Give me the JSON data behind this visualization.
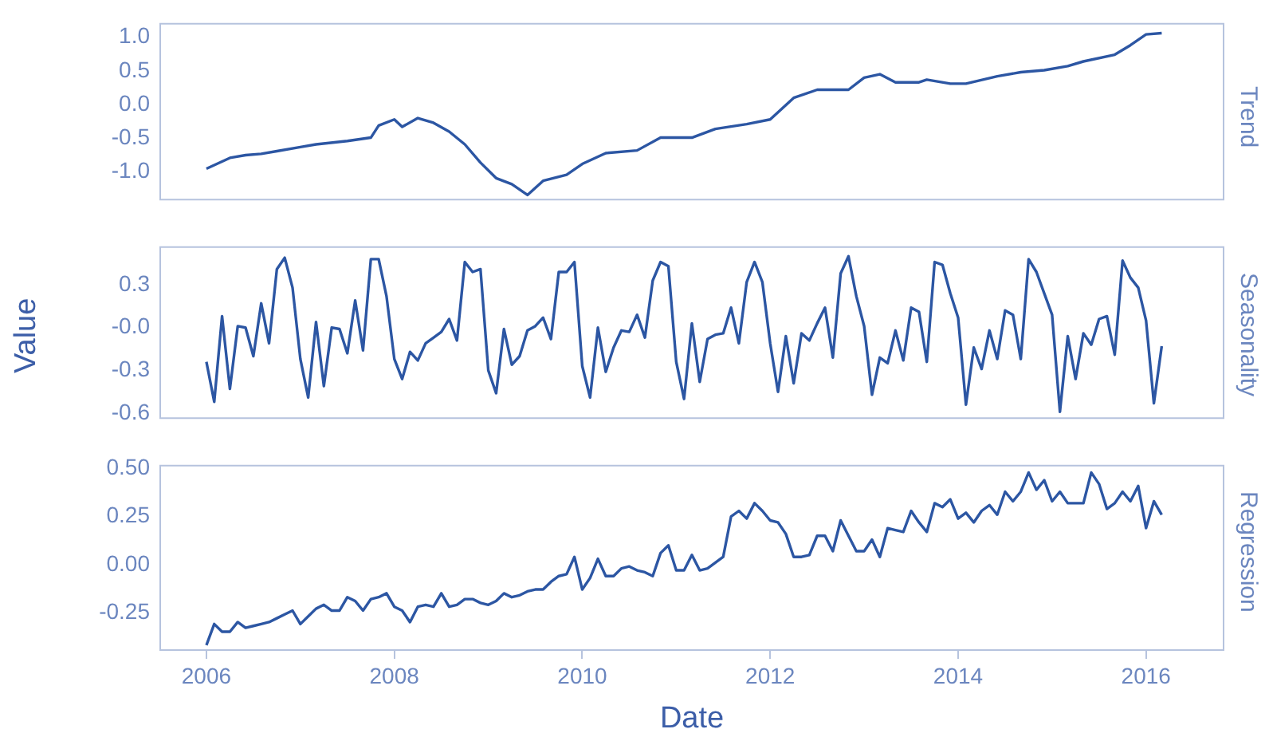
{
  "chart_data": [
    {
      "type": "line",
      "title": "Trend",
      "tick_labels": "y",
      "grid": false,
      "legend": false,
      "marker": "none",
      "color": "#2c56a3",
      "x": [
        "2006-01",
        "2006-04",
        "2006-06",
        "2006-08",
        "2006-10",
        "2007-01",
        "2007-03",
        "2007-07",
        "2007-10",
        "2007-11",
        "2008-01",
        "2008-02",
        "2008-04",
        "2008-06",
        "2008-08",
        "2008-10",
        "2008-12",
        "2009-02",
        "2009-04",
        "2009-06",
        "2009-08",
        "2009-11",
        "2010-01",
        "2010-04",
        "2010-08",
        "2010-11",
        "2011-03",
        "2011-06",
        "2011-10",
        "2012-01",
        "2012-04",
        "2012-07",
        "2012-11",
        "2013-01",
        "2013-03",
        "2013-05",
        "2013-08",
        "2013-09",
        "2013-12",
        "2014-02",
        "2014-06",
        "2014-09",
        "2014-12",
        "2015-03",
        "2015-05",
        "2015-09",
        "2015-11",
        "2016-01",
        "2016-03"
      ],
      "values": [
        -0.95,
        -0.79,
        -0.75,
        -0.73,
        -0.69,
        -0.63,
        -0.59,
        -0.54,
        -0.49,
        -0.31,
        -0.22,
        -0.33,
        -0.2,
        -0.27,
        -0.4,
        -0.59,
        -0.86,
        -1.09,
        -1.18,
        -1.34,
        -1.13,
        -1.04,
        -0.88,
        -0.72,
        -0.68,
        -0.49,
        -0.49,
        -0.36,
        -0.29,
        -0.22,
        0.1,
        0.22,
        0.22,
        0.4,
        0.45,
        0.33,
        0.33,
        0.37,
        0.31,
        0.31,
        0.42,
        0.48,
        0.51,
        0.57,
        0.64,
        0.74,
        0.88,
        1.04,
        1.06
      ],
      "xlim": [
        "2005-07",
        "2016-11"
      ],
      "ylim": [
        -1.42,
        1.21
      ],
      "yticks": [
        {
          "value": 1,
          "label": "1.0"
        },
        0.5,
        {
          "value": 0,
          "label": "0.0"
        },
        -0.5,
        {
          "value": -1,
          "label": "-1.0"
        }
      ]
    },
    {
      "type": "line",
      "title": "Seasonality",
      "ylabel": "Value",
      "tick_labels": "y",
      "grid": false,
      "legend": false,
      "marker": "none",
      "color": "#2c56a3",
      "x": [
        "2006-01",
        "2006-02",
        "2006-03",
        "2006-04",
        "2006-05",
        "2006-06",
        "2006-07",
        "2006-08",
        "2006-09",
        "2006-10",
        "2006-11",
        "2006-12",
        "2007-01",
        "2007-02",
        "2007-03",
        "2007-04",
        "2007-05",
        "2007-06",
        "2007-07",
        "2007-08",
        "2007-09",
        "2007-10",
        "2007-11",
        "2007-12",
        "2008-01",
        "2008-02",
        "2008-03",
        "2008-04",
        "2008-05",
        "2008-06",
        "2008-07",
        "2008-08",
        "2008-09",
        "2008-10",
        "2008-11",
        "2008-12",
        "2009-01",
        "2009-02",
        "2009-03",
        "2009-04",
        "2009-05",
        "2009-06",
        "2009-07",
        "2009-08",
        "2009-09",
        "2009-10",
        "2009-11",
        "2009-12",
        "2010-01",
        "2010-02",
        "2010-03",
        "2010-04",
        "2010-05",
        "2010-06",
        "2010-07",
        "2010-08",
        "2010-09",
        "2010-10",
        "2010-11",
        "2010-12",
        "2011-01",
        "2011-02",
        "2011-03",
        "2011-04",
        "2011-05",
        "2011-06",
        "2011-07",
        "2011-08",
        "2011-09",
        "2011-10",
        "2011-11",
        "2011-12",
        "2012-01",
        "2012-02",
        "2012-03",
        "2012-04",
        "2012-05",
        "2012-06",
        "2012-07",
        "2012-08",
        "2012-09",
        "2012-10",
        "2012-11",
        "2012-12",
        "2013-01",
        "2013-02",
        "2013-03",
        "2013-04",
        "2013-05",
        "2013-06",
        "2013-07",
        "2013-08",
        "2013-09",
        "2013-10",
        "2013-11",
        "2013-12",
        "2014-01",
        "2014-02",
        "2014-03",
        "2014-04",
        "2014-05",
        "2014-06",
        "2014-07",
        "2014-08",
        "2014-09",
        "2014-10",
        "2014-11",
        "2014-12",
        "2015-01",
        "2015-02",
        "2015-03",
        "2015-04",
        "2015-05",
        "2015-06",
        "2015-07",
        "2015-08",
        "2015-09",
        "2015-10",
        "2015-11",
        "2015-12",
        "2016-01",
        "2016-02",
        "2016-03"
      ],
      "values": [
        -0.24,
        -0.52,
        0.08,
        -0.43,
        0.01,
        0.0,
        -0.2,
        0.17,
        -0.11,
        0.41,
        0.49,
        0.28,
        -0.22,
        -0.49,
        0.04,
        -0.41,
        0.0,
        -0.01,
        -0.18,
        0.19,
        -0.16,
        0.48,
        0.48,
        0.22,
        -0.22,
        -0.36,
        -0.17,
        -0.23,
        -0.11,
        -0.07,
        -0.03,
        0.06,
        -0.09,
        0.46,
        0.39,
        0.41,
        -0.3,
        -0.46,
        -0.01,
        -0.26,
        -0.2,
        -0.02,
        0.01,
        0.07,
        -0.08,
        0.39,
        0.39,
        0.46,
        -0.27,
        -0.49,
        0.0,
        -0.31,
        -0.14,
        -0.02,
        -0.03,
        0.09,
        -0.07,
        0.33,
        0.46,
        0.43,
        -0.24,
        -0.5,
        0.03,
        -0.38,
        -0.08,
        -0.05,
        -0.04,
        0.14,
        -0.11,
        0.32,
        0.46,
        0.32,
        -0.11,
        -0.45,
        -0.06,
        -0.39,
        -0.04,
        -0.09,
        0.03,
        0.14,
        -0.21,
        0.38,
        0.5,
        0.22,
        0.01,
        -0.47,
        -0.21,
        -0.25,
        -0.02,
        -0.23,
        0.14,
        0.11,
        -0.24,
        0.46,
        0.44,
        0.24,
        0.07,
        -0.54,
        -0.14,
        -0.29,
        -0.02,
        -0.22,
        0.12,
        0.09,
        -0.22,
        0.48,
        0.39,
        0.24,
        0.09,
        -0.59,
        -0.06,
        -0.36,
        -0.04,
        -0.12,
        0.06,
        0.08,
        -0.19,
        0.47,
        0.35,
        0.28,
        0.05,
        -0.53,
        -0.13
      ],
      "xlim": [
        "2005-07",
        "2016-11"
      ],
      "ylim": [
        -0.64,
        0.57
      ],
      "yticks": [
        0.3,
        {
          "value": 0,
          "label": "-0.0"
        },
        -0.3,
        -0.6
      ]
    },
    {
      "type": "line",
      "title": "Regression",
      "xlabel": "Date",
      "grid": false,
      "legend": false,
      "marker": "none",
      "color": "#2c56a3",
      "x": [
        "2006-01",
        "2006-02",
        "2006-03",
        "2006-04",
        "2006-05",
        "2006-06",
        "2006-07",
        "2006-08",
        "2006-09",
        "2006-10",
        "2006-11",
        "2006-12",
        "2007-01",
        "2007-02",
        "2007-03",
        "2007-04",
        "2007-05",
        "2007-06",
        "2007-07",
        "2007-08",
        "2007-09",
        "2007-10",
        "2007-11",
        "2007-12",
        "2008-01",
        "2008-02",
        "2008-03",
        "2008-04",
        "2008-05",
        "2008-06",
        "2008-07",
        "2008-08",
        "2008-09",
        "2008-10",
        "2008-11",
        "2008-12",
        "2009-01",
        "2009-02",
        "2009-03",
        "2009-04",
        "2009-05",
        "2009-06",
        "2009-07",
        "2009-08",
        "2009-09",
        "2009-10",
        "2009-11",
        "2009-12",
        "2010-01",
        "2010-02",
        "2010-03",
        "2010-04",
        "2010-05",
        "2010-06",
        "2010-07",
        "2010-08",
        "2010-09",
        "2010-10",
        "2010-11",
        "2010-12",
        "2011-01",
        "2011-02",
        "2011-03",
        "2011-04",
        "2011-05",
        "2011-06",
        "2011-07",
        "2011-08",
        "2011-09",
        "2011-10",
        "2011-11",
        "2011-12",
        "2012-01",
        "2012-02",
        "2012-03",
        "2012-04",
        "2012-05",
        "2012-06",
        "2012-07",
        "2012-08",
        "2012-09",
        "2012-10",
        "2012-11",
        "2012-12",
        "2013-01",
        "2013-02",
        "2013-03",
        "2013-04",
        "2013-05",
        "2013-06",
        "2013-07",
        "2013-08",
        "2013-09",
        "2013-10",
        "2013-11",
        "2013-12",
        "2014-01",
        "2014-02",
        "2014-03",
        "2014-04",
        "2014-05",
        "2014-06",
        "2014-07",
        "2014-08",
        "2014-09",
        "2014-10",
        "2014-11",
        "2014-12",
        "2015-01",
        "2015-02",
        "2015-03",
        "2015-04",
        "2015-05",
        "2015-06",
        "2015-07",
        "2015-08",
        "2015-09",
        "2015-10",
        "2015-11",
        "2015-12",
        "2016-01",
        "2016-02",
        "2016-03"
      ],
      "values": [
        -0.42,
        -0.31,
        -0.35,
        -0.35,
        -0.3,
        -0.33,
        -0.32,
        -0.31,
        -0.3,
        -0.28,
        -0.26,
        -0.24,
        -0.31,
        -0.27,
        -0.23,
        -0.21,
        -0.24,
        -0.24,
        -0.17,
        -0.19,
        -0.24,
        -0.18,
        -0.17,
        -0.15,
        -0.22,
        -0.24,
        -0.3,
        -0.22,
        -0.21,
        -0.22,
        -0.15,
        -0.22,
        -0.21,
        -0.18,
        -0.18,
        -0.2,
        -0.21,
        -0.19,
        -0.15,
        -0.17,
        -0.16,
        -0.14,
        -0.13,
        -0.13,
        -0.09,
        -0.06,
        -0.05,
        0.04,
        -0.13,
        -0.07,
        0.03,
        -0.06,
        -0.06,
        -0.02,
        -0.01,
        -0.03,
        -0.04,
        -0.06,
        0.06,
        0.1,
        -0.03,
        -0.03,
        0.05,
        -0.03,
        -0.02,
        0.01,
        0.04,
        0.25,
        0.28,
        0.24,
        0.32,
        0.28,
        0.23,
        0.22,
        0.16,
        0.04,
        0.04,
        0.05,
        0.15,
        0.15,
        0.07,
        0.23,
        0.15,
        0.07,
        0.07,
        0.13,
        0.04,
        0.19,
        0.18,
        0.17,
        0.28,
        0.22,
        0.17,
        0.32,
        0.3,
        0.34,
        0.24,
        0.27,
        0.22,
        0.28,
        0.31,
        0.26,
        0.38,
        0.33,
        0.38,
        0.48,
        0.39,
        0.44,
        0.33,
        0.38,
        0.32,
        0.32,
        0.32,
        0.48,
        0.42,
        0.29,
        0.32,
        0.38,
        0.33,
        0.41,
        0.19,
        0.33,
        0.26
      ],
      "xlim": [
        "2005-07",
        "2016-11"
      ],
      "ylim": [
        -0.45,
        0.52
      ],
      "xticks": [
        "2006",
        "2008",
        "2010",
        "2012",
        "2014",
        "2016"
      ],
      "yticks": [
        {
          "value": 0.5,
          "label": "0.50"
        },
        0.25,
        {
          "value": 0,
          "label": "0.00"
        },
        -0.25
      ]
    }
  ]
}
